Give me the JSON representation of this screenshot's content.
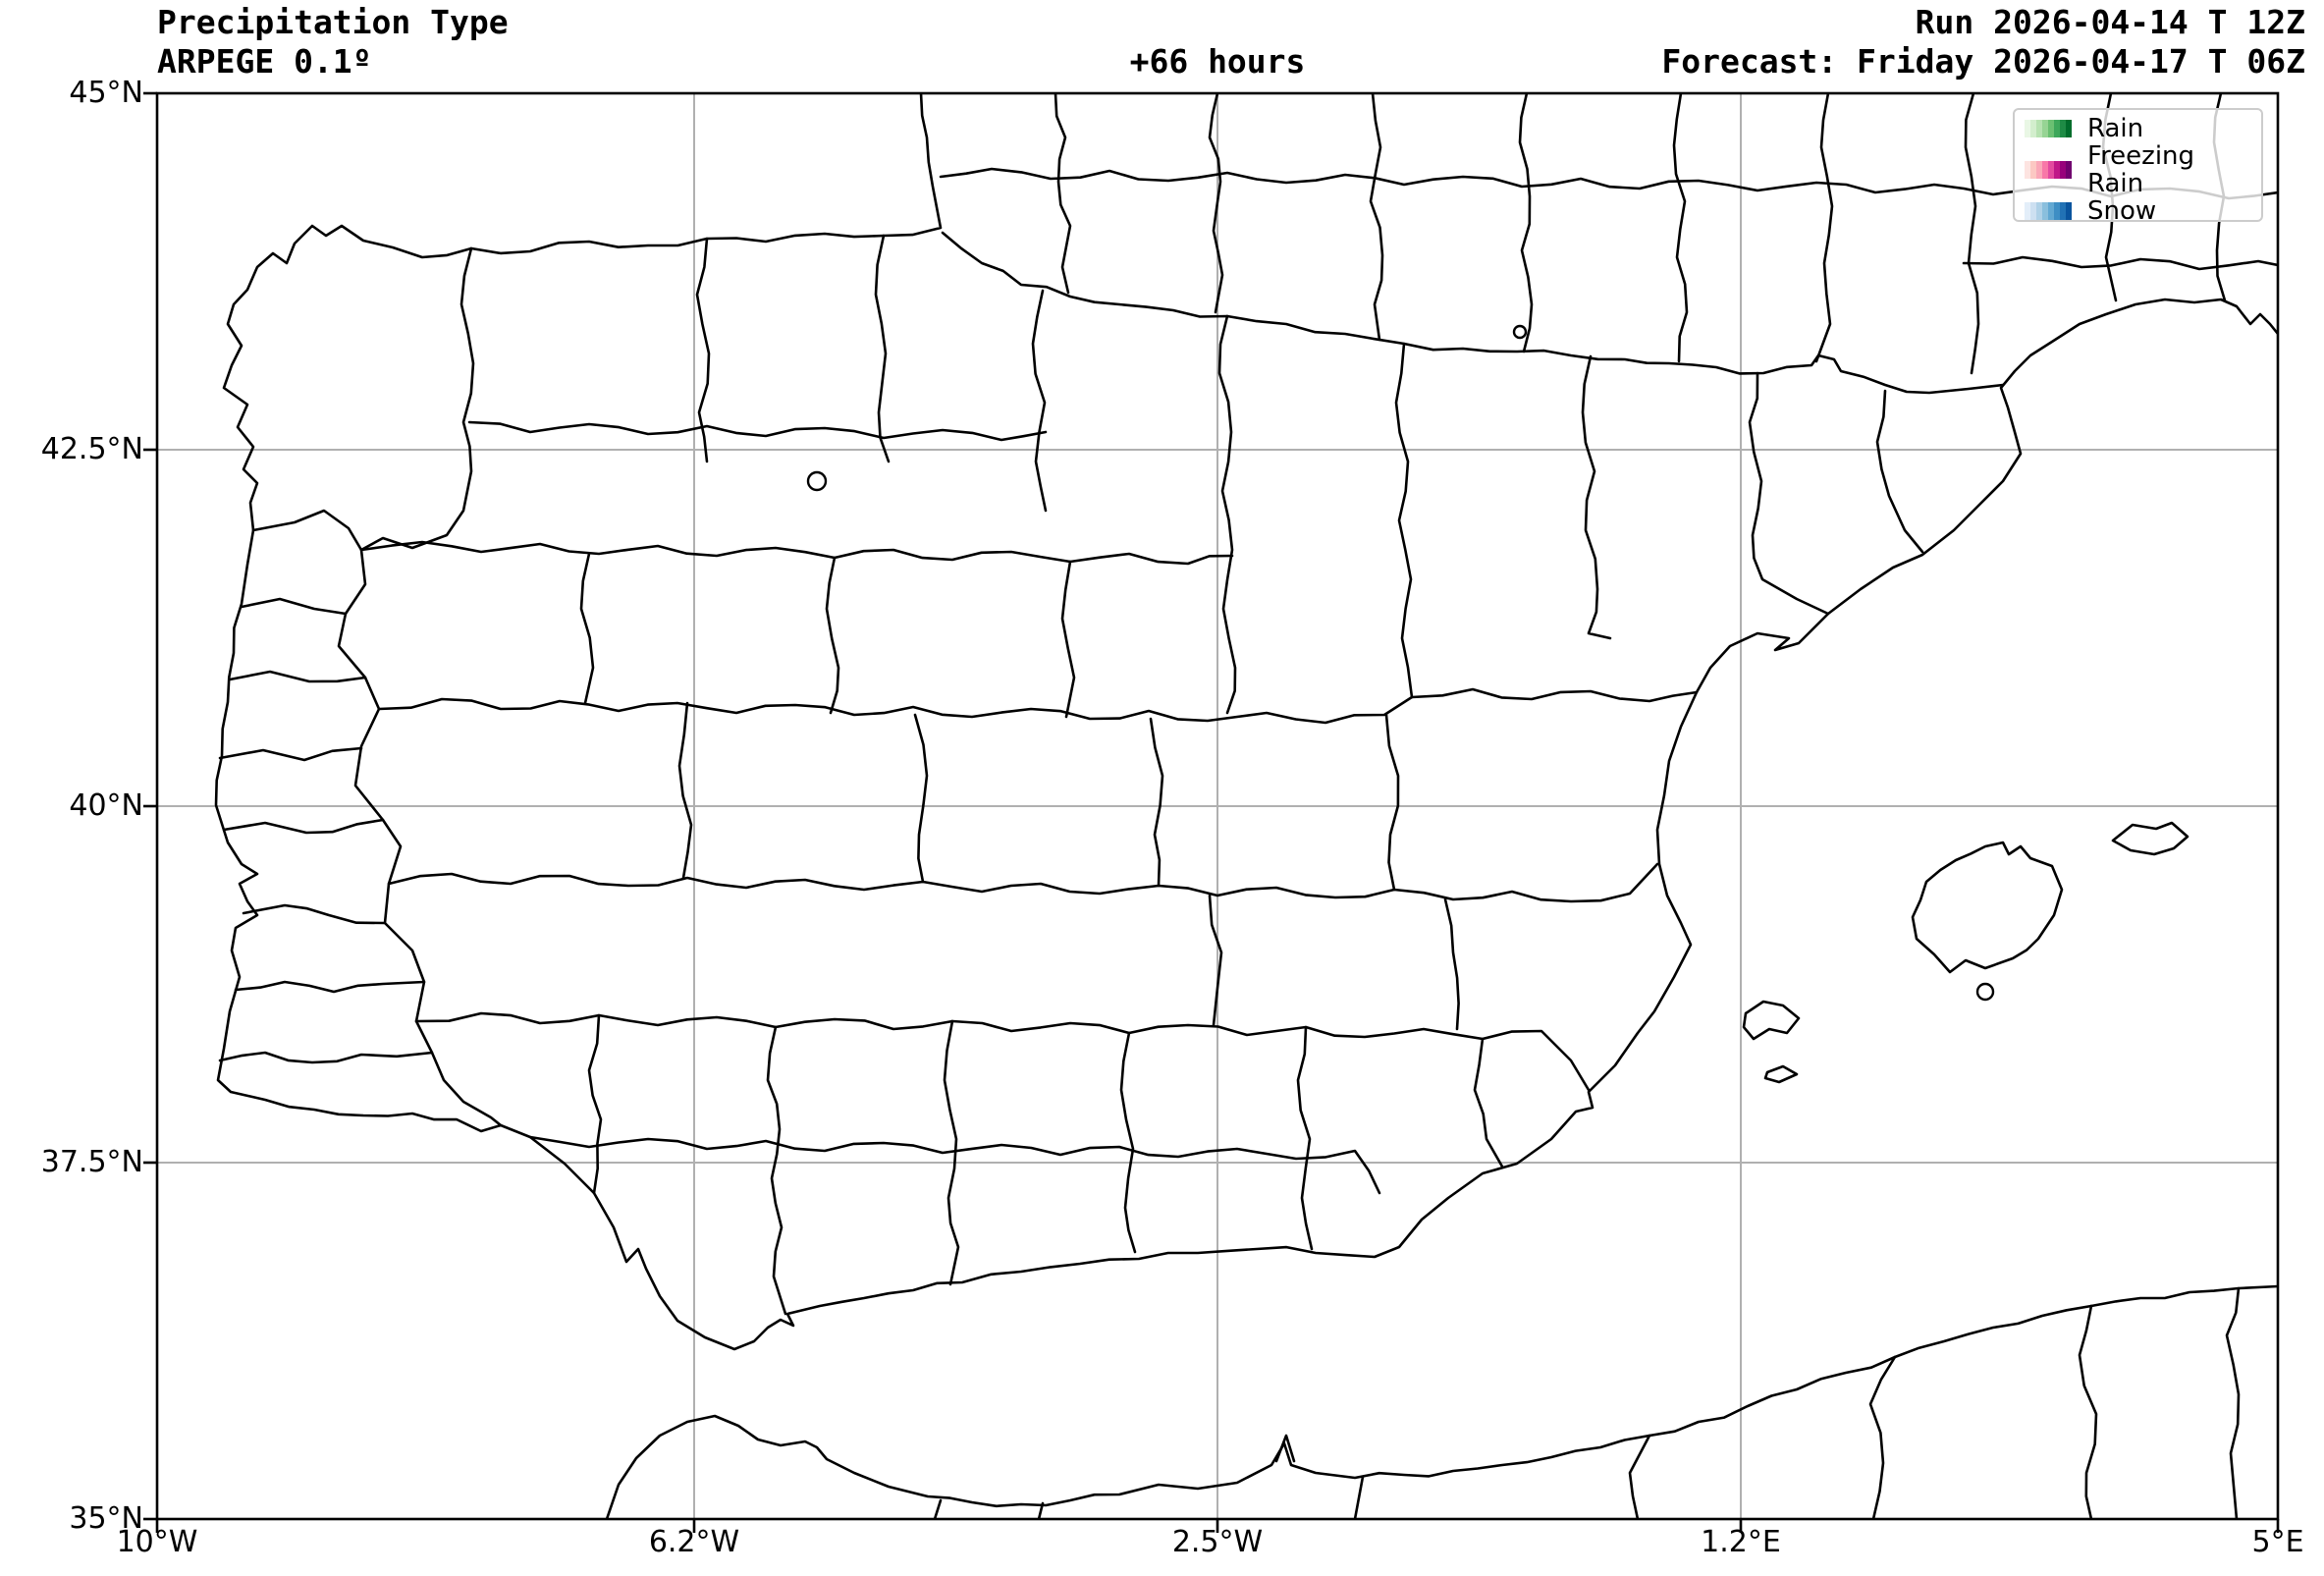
{
  "header": {
    "title": "Precipitation Type",
    "model": "ARPEGE 0.1º",
    "lead_time": "+66 hours",
    "run": "Run 2026-04-14 T 12Z",
    "forecast": "Forecast: Friday 2026-04-17 T 06Z"
  },
  "axes": {
    "x_ticks": [
      "10°W",
      "6.2°W",
      "2.5°W",
      "1.2°E",
      "5°E"
    ],
    "y_ticks": [
      "45°N",
      "42.5°N",
      "40°N",
      "37.5°N",
      "35°N"
    ]
  },
  "legend": {
    "items": [
      {
        "label": "Rain",
        "colors": [
          "#e9f7e5",
          "#d3eecd",
          "#b7e2b1",
          "#97d494",
          "#6bc072",
          "#3da75a",
          "#1e8b45",
          "#006d2c"
        ]
      },
      {
        "label": "Freezing Rain",
        "colors": [
          "#fde4e1",
          "#fcc8c3",
          "#faa8b8",
          "#f878a8",
          "#e34a9f",
          "#c01788",
          "#98017b",
          "#70016e"
        ]
      },
      {
        "label": "Snow",
        "colors": [
          "#e3eef9",
          "#cde0f1",
          "#afd1e7",
          "#8abfdd",
          "#62a8d2",
          "#3e8ec4",
          "#2272b5",
          "#0a549e"
        ]
      }
    ]
  },
  "colors": {
    "boundary": "#000000",
    "grid": "#b0b0b0",
    "frame": "#000000",
    "legend_border": "#cccccc"
  }
}
